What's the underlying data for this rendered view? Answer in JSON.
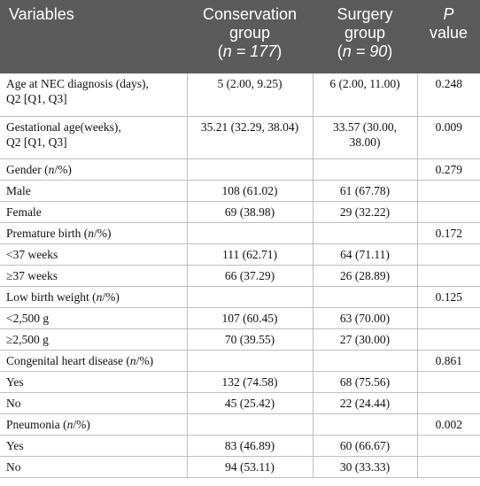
{
  "header": {
    "variables": "Variables",
    "conservation_l1": "Conservation",
    "conservation_l2": "group",
    "conservation_l3": "n = 177",
    "surgery_l1": "Surgery",
    "surgery_l2": "group",
    "surgery_l3": "n = 90",
    "p_l1": "P",
    "p_l2": "value"
  },
  "rows": [
    {
      "v1": "Age at NEC diagnosis (days),",
      "v2": "Q2 [Q1, Q3]",
      "c1": "5 (2.00, 9.25)",
      "c2": "",
      "s1": "6 (2.00, 11.00)",
      "s2": "",
      "p": "0.248"
    },
    {
      "v1": "Gestational age(weeks),",
      "v2": "Q2 [Q1, Q3]",
      "c1": "35.21 (32.29, 38.04)",
      "c2": "",
      "s1": "33.57 (30.00,",
      "s2": "38.00)",
      "p": "0.009"
    },
    {
      "v": "Gender",
      "unit": "n",
      "unit_suffix": "/%)",
      "c": "",
      "s": "",
      "p": "0.279"
    },
    {
      "v": "Male",
      "c": "108 (61.02)",
      "s": "61 (67.78)",
      "p": ""
    },
    {
      "v": "Female",
      "c": "69 (38.98)",
      "s": "29 (32.22)",
      "p": ""
    },
    {
      "v": "Premature birth",
      "unit": "n",
      "unit_suffix": "/%)",
      "c": "",
      "s": "",
      "p": "0.172"
    },
    {
      "v": "<37 weeks",
      "c": "111 (62.71)",
      "s": "64 (71.11)",
      "p": ""
    },
    {
      "v": "≥37 weeks",
      "c": "66 (37.29)",
      "s": "26 (28.89)",
      "p": ""
    },
    {
      "v": "Low birth weight",
      "unit": "n",
      "unit_suffix": "/%)",
      "c": "",
      "s": "",
      "p": "0.125"
    },
    {
      "v": "<2,500 g",
      "c": "107 (60.45)",
      "s": "63 (70.00)",
      "p": ""
    },
    {
      "v": "≥2,500 g",
      "c": "70 (39.55)",
      "s": "27 (30.00)",
      "p": ""
    },
    {
      "v": "Congenital heart disease",
      "unit": "n",
      "unit_suffix": "/%)",
      "c": "",
      "s": "",
      "p": "0.861"
    },
    {
      "v": "Yes",
      "c": "132 (74.58)",
      "s": "68 (75.56)",
      "p": ""
    },
    {
      "v": "No",
      "c": "45 (25.42)",
      "s": "22 (24.44)",
      "p": ""
    },
    {
      "v": "Pneumonia",
      "unit": "n",
      "unit_suffix": "/%)",
      "c": "",
      "s": "",
      "p": "0.002"
    },
    {
      "v": "Yes",
      "c": "83 (46.89)",
      "s": "60 (66.67)",
      "p": ""
    },
    {
      "v": "No",
      "c": "94 (53.11)",
      "s": "30 (33.33)",
      "p": ""
    }
  ]
}
